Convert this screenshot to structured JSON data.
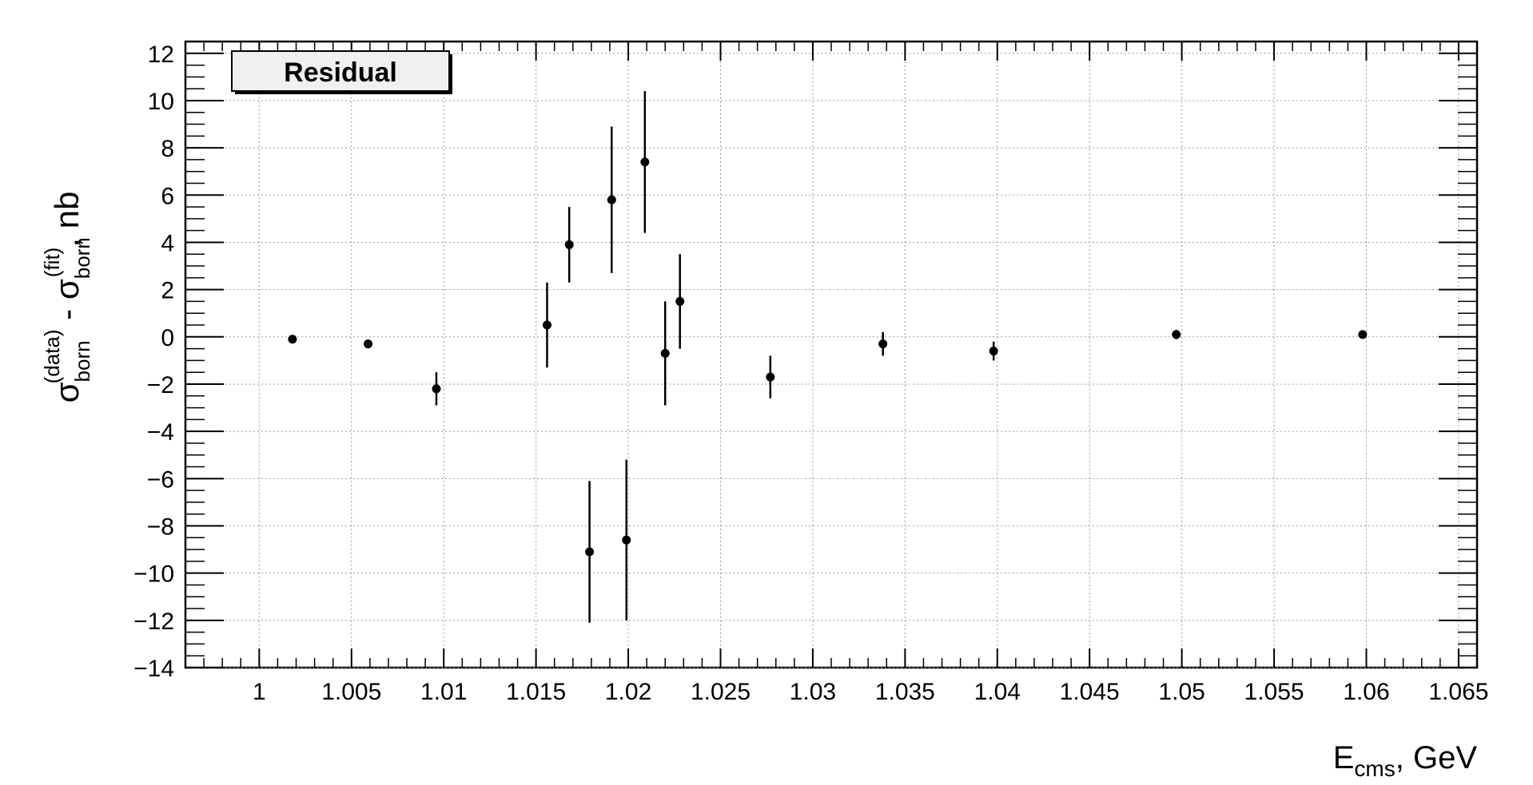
{
  "chart_data": {
    "type": "scatter",
    "legend_label": "Residual",
    "legend_position": "top-left",
    "grid": true,
    "xlabel": {
      "main": "E",
      "sub": "cms",
      "tail": ", GeV"
    },
    "ylabel": {
      "sigma": "σ",
      "sub1": "born",
      "sup1": "(data)",
      "minus": " - ",
      "sub2": "born",
      "sup2": "(fit)",
      "tail": ", nb"
    },
    "xlim": [
      0.996,
      1.066
    ],
    "ylim": [
      -14,
      12.5
    ],
    "x_ticks": [
      1,
      1.005,
      1.01,
      1.015,
      1.02,
      1.025,
      1.03,
      1.035,
      1.04,
      1.045,
      1.05,
      1.055,
      1.06,
      1.065
    ],
    "x_tick_labels": [
      "1",
      "1.005",
      "1.01",
      "1.015",
      "1.02",
      "1.025",
      "1.03",
      "1.035",
      "1.04",
      "1.045",
      "1.05",
      "1.055",
      "1.06",
      "1.065"
    ],
    "y_ticks": [
      -14,
      -12,
      -10,
      -8,
      -6,
      -4,
      -2,
      0,
      2,
      4,
      6,
      8,
      10,
      12
    ],
    "y_tick_labels": [
      "−14",
      "−12",
      "−10",
      "−8",
      "−6",
      "−4",
      "−2",
      "0",
      "2",
      "4",
      "6",
      "8",
      "10",
      "12"
    ],
    "points": [
      {
        "x": 1.0018,
        "y": -0.1,
        "err": 0.0
      },
      {
        "x": 1.0059,
        "y": -0.3,
        "err": 0.0
      },
      {
        "x": 1.0096,
        "y": -2.2,
        "err": 0.7
      },
      {
        "x": 1.0156,
        "y": 0.5,
        "err": 1.8
      },
      {
        "x": 1.0168,
        "y": 3.9,
        "err": 1.6
      },
      {
        "x": 1.0179,
        "y": -9.1,
        "err": 3.0
      },
      {
        "x": 1.0191,
        "y": 5.8,
        "err": 3.1
      },
      {
        "x": 1.0199,
        "y": -8.6,
        "err": 3.4
      },
      {
        "x": 1.0209,
        "y": 7.4,
        "err": 3.0
      },
      {
        "x": 1.022,
        "y": -0.7,
        "err": 2.2
      },
      {
        "x": 1.0228,
        "y": 1.5,
        "err": 2.0
      },
      {
        "x": 1.0277,
        "y": -1.7,
        "err": 0.9
      },
      {
        "x": 1.0338,
        "y": -0.3,
        "err": 0.5
      },
      {
        "x": 1.0398,
        "y": -0.6,
        "err": 0.4
      },
      {
        "x": 1.0497,
        "y": 0.1,
        "err": 0.2
      },
      {
        "x": 1.0598,
        "y": 0.1,
        "err": 0.0
      }
    ]
  }
}
